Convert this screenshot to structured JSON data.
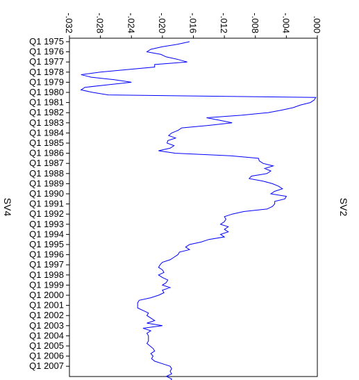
{
  "chart_data": {
    "type": "line",
    "orientation": "rotated-90",
    "title": "",
    "xlabel": "SV4",
    "ylabel": "SV2",
    "ylim": [
      -0.032,
      0.0
    ],
    "yticks": [
      -0.032,
      -0.028,
      -0.024,
      -0.02,
      -0.016,
      -0.012,
      -0.008,
      -0.004,
      0.0
    ],
    "ytick_labels": [
      "-.032",
      "-.028",
      "-.024",
      "-.020",
      "-.016",
      "-.012",
      "-.008",
      "-.004",
      ".000"
    ],
    "x_tick_labels": [
      "Q1 1975",
      "Q1 1976",
      "Q1 1977",
      "Q1 1978",
      "Q1 1979",
      "Q1 1980",
      "Q1 1981",
      "Q1 1982",
      "Q1 1983",
      "Q1 1984",
      "Q1 1985",
      "Q1 1986",
      "Q1 1987",
      "Q1 1988",
      "Q1 1989",
      "Q1 1990",
      "Q1 1991",
      "Q1 1992",
      "Q1 1993",
      "Q1 1994",
      "Q1 1995",
      "Q1 1996",
      "Q1 1997",
      "Q1 1998",
      "Q1 1999",
      "Q1 2000",
      "Q1 2001",
      "Q1 2002",
      "Q1 2003",
      "Q1 2004",
      "Q1 2005",
      "Q1 2006",
      "Q1 2007"
    ],
    "x_start": "1975Q1",
    "color": "#0000ff",
    "series": [
      {
        "values": [
          -0.0165,
          -0.018,
          -0.02,
          -0.0215,
          -0.022,
          -0.0202,
          -0.0195,
          -0.018,
          -0.0168,
          -0.021,
          -0.021,
          -0.0245,
          -0.028,
          -0.0305,
          -0.0292,
          -0.0262,
          -0.024,
          -0.027,
          -0.03,
          -0.0305,
          -0.029,
          -0.027,
          -0.0002,
          -0.0004,
          -0.0009,
          -0.0022,
          -0.0031,
          -0.0046,
          -0.0064,
          -0.0098,
          -0.0143,
          -0.0126,
          -0.011,
          -0.014,
          -0.0175,
          -0.018,
          -0.0188,
          -0.0192,
          -0.0183,
          -0.0193,
          -0.0194,
          -0.0185,
          -0.019,
          -0.0205,
          -0.0183,
          -0.0112,
          -0.0076,
          -0.0075,
          -0.007,
          -0.0057,
          -0.0068,
          -0.006,
          -0.0065,
          -0.0085,
          -0.0088,
          -0.007,
          -0.0058,
          -0.005,
          -0.0045,
          -0.0055,
          -0.006,
          -0.004,
          -0.0042,
          -0.0055,
          -0.0055,
          -0.0058,
          -0.0065,
          -0.0095,
          -0.011,
          -0.012,
          -0.0118,
          -0.012,
          -0.0125,
          -0.0115,
          -0.012,
          -0.0115,
          -0.0125,
          -0.012,
          -0.014,
          -0.015,
          -0.0165,
          -0.017,
          -0.0165,
          -0.0178,
          -0.018,
          -0.0185,
          -0.019,
          -0.02,
          -0.0203,
          -0.0205,
          -0.02,
          -0.0198,
          -0.0205,
          -0.02,
          -0.0193,
          -0.0195,
          -0.02,
          -0.019,
          -0.02,
          -0.0198,
          -0.0205,
          -0.0215,
          -0.023,
          -0.0232,
          -0.0232,
          -0.0232,
          -0.0225,
          -0.0218,
          -0.022,
          -0.0215,
          -0.021,
          -0.022,
          -0.02,
          -0.0225,
          -0.0215,
          -0.022,
          -0.0218,
          -0.0218,
          -0.0218,
          -0.022,
          -0.0216,
          -0.0212,
          -0.021,
          -0.0215,
          -0.0212,
          -0.0214,
          -0.021,
          -0.02,
          -0.019,
          -0.0188,
          -0.019,
          -0.0188,
          -0.0195,
          -0.0188,
          -0.019,
          -0.0195,
          -0.0188,
          -0.0195,
          -0.019
        ]
      }
    ]
  }
}
